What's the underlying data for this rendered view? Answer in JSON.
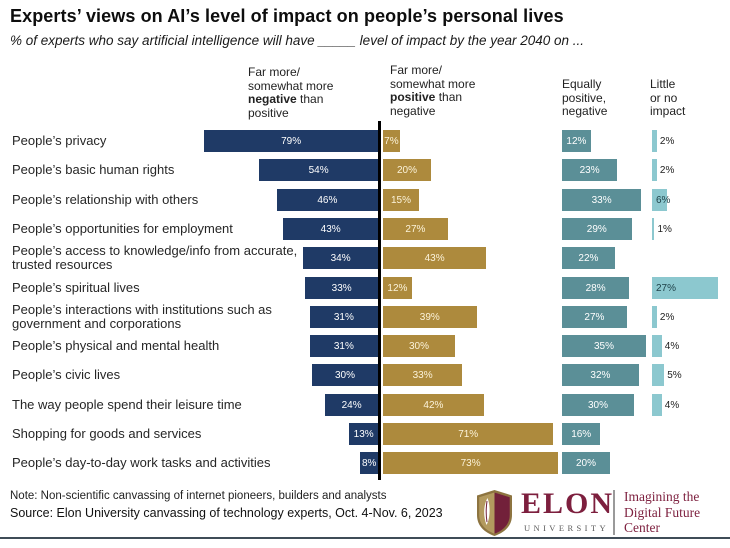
{
  "title": "Experts’ views on AI’s level of impact on people’s personal lives",
  "subtitle": "% of experts who say artificial intelligence will have _____ level of impact by the year 2040 on ...",
  "columns": [
    {
      "pre": "Far more/\nsomewhat more ",
      "bold": "negative",
      "post": " than\npositive"
    },
    {
      "pre": "Far more/\nsomewhat more ",
      "bold": "positive",
      "post": " than\nnegative"
    },
    {
      "text": "Equally\npositive,\nnegative"
    },
    {
      "text": "Little\nor no\nimpact"
    }
  ],
  "chart_data": {
    "type": "bar",
    "orientation": "horizontal",
    "unit": "%",
    "title": "Experts’ views on AI’s level of impact on people’s personal lives",
    "categories": [
      "People’s privacy",
      "People’s basic human rights",
      "People’s relationship with others",
      "People’s opportunities for employment",
      "People’s access to knowledge/info from accurate, trusted resources",
      "People’s spiritual lives",
      "People’s interactions with institutions such as government and corporations",
      "People’s physical and mental health",
      "People’s civic lives",
      "The way people spend their leisure time",
      "Shopping for goods and services",
      "People’s day-to-day work tasks and activities"
    ],
    "series": [
      {
        "name": "Far more/somewhat more negative than positive",
        "color": "#1f3a66",
        "values": [
          79,
          54,
          46,
          43,
          34,
          33,
          31,
          31,
          30,
          24,
          13,
          8
        ]
      },
      {
        "name": "Far more/somewhat more positive than negative",
        "color": "#ad8a3d",
        "values": [
          7,
          20,
          15,
          27,
          43,
          12,
          39,
          30,
          33,
          42,
          71,
          73
        ]
      },
      {
        "name": "Equally positive, negative",
        "color": "#5b8f97",
        "values": [
          12,
          23,
          33,
          29,
          22,
          28,
          27,
          35,
          32,
          30,
          16,
          20
        ]
      },
      {
        "name": "Little or no impact",
        "color": "#8cc8cf",
        "values": [
          2,
          2,
          6,
          1,
          null,
          27,
          2,
          4,
          5,
          4,
          null,
          null
        ]
      }
    ],
    "xlim": [
      0,
      80
    ],
    "legend_position": "top-as-column-headers",
    "grid": false
  },
  "note": "Note: Non-scientific canvassing of internet pioneers, builders and analysts",
  "source": "Source: Elon University canvassing of technology experts, Oct. 4-Nov. 6, 2023",
  "logo": {
    "name": "ELON",
    "sub": "UNIVERSITY",
    "tagline": "Imagining the\nDigital Future\nCenter",
    "maroon": "#7d1f3e",
    "gold": "#a9905a"
  },
  "colors": {
    "negative": "#1f3a66",
    "positive": "#ad8a3d",
    "equal": "#5b8f97",
    "little": "#8cc8cf",
    "bar_label_light": "#ffffff",
    "bar_label_cream": "#fcf3da",
    "bar_label_dark": "#1d3f46"
  }
}
